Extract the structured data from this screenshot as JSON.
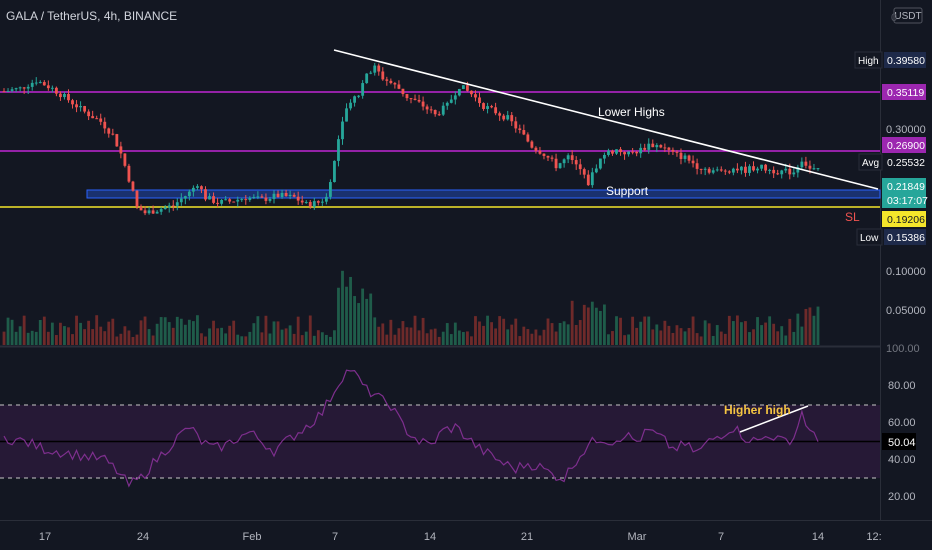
{
  "header": {
    "symbol_line": "GALA / TetherUS, 4h, BINANCE",
    "currency": "USDT"
  },
  "colors": {
    "background": "#131722",
    "up": "#26a69a",
    "down": "#ef5350",
    "resistance": "#c026d3",
    "sl_line": "#f5e62b",
    "support_zone": "#2962ff",
    "trendline": "#ffffff",
    "rsi": "#7e2f8e",
    "rsi_band": "#2a1a3a"
  },
  "chart_data": [
    {
      "type": "candlestick",
      "title": "GALA / TetherUS, 4h, BINANCE",
      "y_scale": "log",
      "y_tick_labels": [
        "0.30000",
        "0.10000",
        "0.05000"
      ],
      "x_tick_labels": [
        "17",
        "24",
        "Feb",
        "7",
        "14",
        "21",
        "Mar",
        "7",
        "14",
        "12:"
      ],
      "price_labels": [
        {
          "name": "High",
          "value": "0.39580"
        },
        {
          "name": "",
          "value": "0.35119"
        },
        {
          "name": "",
          "value": "0.26900"
        },
        {
          "name": "Avg",
          "value": "0.25532"
        },
        {
          "name": "",
          "value": "0.21849"
        },
        {
          "name": "",
          "value": "03:17:07"
        },
        {
          "name": "",
          "value": "0.19206"
        },
        {
          "name": "Low",
          "value": "0.15386"
        }
      ],
      "horizontal_levels": [
        {
          "value": 0.35119,
          "color": "#c026d3"
        },
        {
          "value": 0.269,
          "color": "#c026d3"
        },
        {
          "value": 0.19206,
          "color": "#f5e62b"
        }
      ],
      "support_zone": [
        0.205,
        0.214
      ],
      "trendline": {
        "label": "Lower Highs",
        "from_value": 0.42,
        "to_value": 0.218
      },
      "annotations": [
        "Lower Highs",
        "Support",
        "SL"
      ],
      "current_price": 0.21849,
      "high": 0.3958,
      "low": 0.15386,
      "average": 0.25532,
      "price_path": [
        [
          0,
          0.335
        ],
        [
          4,
          0.34
        ],
        [
          8,
          0.355
        ],
        [
          12,
          0.34
        ],
        [
          16,
          0.32
        ],
        [
          20,
          0.3
        ],
        [
          24,
          0.285
        ],
        [
          27,
          0.265
        ],
        [
          29,
          0.24
        ],
        [
          31,
          0.21
        ],
        [
          33,
          0.18
        ],
        [
          35,
          0.175
        ],
        [
          38,
          0.178
        ],
        [
          42,
          0.182
        ],
        [
          46,
          0.195
        ],
        [
          48,
          0.205
        ],
        [
          50,
          0.19
        ],
        [
          53,
          0.185
        ],
        [
          56,
          0.186
        ],
        [
          60,
          0.19
        ],
        [
          64,
          0.188
        ],
        [
          68,
          0.192
        ],
        [
          72,
          0.19
        ],
        [
          75,
          0.183
        ],
        [
          78,
          0.185
        ],
        [
          80,
          0.19
        ],
        [
          82,
          0.23
        ],
        [
          84,
          0.29
        ],
        [
          86,
          0.32
        ],
        [
          88,
          0.33
        ],
        [
          90,
          0.37
        ],
        [
          92,
          0.38
        ],
        [
          94,
          0.36
        ],
        [
          96,
          0.35
        ],
        [
          98,
          0.34
        ],
        [
          100,
          0.325
        ],
        [
          104,
          0.31
        ],
        [
          107,
          0.295
        ],
        [
          110,
          0.31
        ],
        [
          113,
          0.345
        ],
        [
          116,
          0.33
        ],
        [
          119,
          0.31
        ],
        [
          122,
          0.3
        ],
        [
          125,
          0.29
        ],
        [
          128,
          0.27
        ],
        [
          131,
          0.25
        ],
        [
          134,
          0.24
        ],
        [
          137,
          0.225
        ],
        [
          140,
          0.235
        ],
        [
          143,
          0.22
        ],
        [
          145,
          0.205
        ],
        [
          147,
          0.225
        ],
        [
          149,
          0.24
        ],
        [
          152,
          0.245
        ],
        [
          155,
          0.24
        ],
        [
          158,
          0.245
        ],
        [
          160,
          0.252
        ],
        [
          163,
          0.25
        ],
        [
          166,
          0.24
        ],
        [
          169,
          0.235
        ],
        [
          172,
          0.225
        ],
        [
          175,
          0.22
        ],
        [
          178,
          0.218
        ],
        [
          181,
          0.222
        ],
        [
          184,
          0.22
        ],
        [
          187,
          0.224
        ],
        [
          190,
          0.22
        ],
        [
          193,
          0.218
        ],
        [
          196,
          0.218
        ],
        [
          198,
          0.233
        ],
        [
          200,
          0.221
        ],
        [
          202,
          0.2185
        ]
      ]
    },
    {
      "type": "bar",
      "title": "",
      "description": "volume",
      "y_tick_labels": [
        "0.10000",
        "0.05000"
      ]
    },
    {
      "type": "line",
      "title": "",
      "description": "RSI",
      "y_tick_labels": [
        "100.00",
        "80.00",
        "60.00",
        "40.00",
        "20.00"
      ],
      "ylim": [
        0,
        100
      ],
      "band": [
        30,
        70
      ],
      "last_value": "50.04",
      "annotations": [
        "Higher high"
      ],
      "values": [
        [
          0,
          52
        ],
        [
          5,
          50
        ],
        [
          10,
          46
        ],
        [
          15,
          44
        ],
        [
          20,
          42
        ],
        [
          25,
          40
        ],
        [
          28,
          34
        ],
        [
          31,
          26
        ],
        [
          34,
          30
        ],
        [
          37,
          38
        ],
        [
          40,
          45
        ],
        [
          43,
          52
        ],
        [
          46,
          58
        ],
        [
          49,
          50
        ],
        [
          52,
          46
        ],
        [
          55,
          48
        ],
        [
          58,
          52
        ],
        [
          61,
          55
        ],
        [
          64,
          50
        ],
        [
          67,
          45
        ],
        [
          70,
          50
        ],
        [
          73,
          55
        ],
        [
          76,
          60
        ],
        [
          79,
          66
        ],
        [
          82,
          78
        ],
        [
          84,
          86
        ],
        [
          86,
          90
        ],
        [
          88,
          84
        ],
        [
          90,
          78
        ],
        [
          92,
          76
        ],
        [
          94,
          72
        ],
        [
          96,
          70
        ],
        [
          98,
          62
        ],
        [
          100,
          56
        ],
        [
          103,
          50
        ],
        [
          106,
          48
        ],
        [
          109,
          56
        ],
        [
          112,
          58
        ],
        [
          115,
          52
        ],
        [
          118,
          46
        ],
        [
          121,
          42
        ],
        [
          124,
          38
        ],
        [
          127,
          35
        ],
        [
          130,
          38
        ],
        [
          133,
          36
        ],
        [
          136,
          32
        ],
        [
          139,
          30
        ],
        [
          142,
          40
        ],
        [
          145,
          48
        ],
        [
          148,
          52
        ],
        [
          151,
          50
        ],
        [
          154,
          54
        ],
        [
          157,
          50
        ],
        [
          160,
          56
        ],
        [
          163,
          52
        ],
        [
          166,
          46
        ],
        [
          169,
          48
        ],
        [
          172,
          44
        ],
        [
          175,
          50
        ],
        [
          178,
          54
        ],
        [
          181,
          58
        ],
        [
          184,
          52
        ],
        [
          187,
          50
        ],
        [
          190,
          54
        ],
        [
          193,
          50
        ],
        [
          196,
          52
        ],
        [
          198,
          66
        ],
        [
          200,
          55
        ],
        [
          202,
          50
        ]
      ]
    }
  ]
}
